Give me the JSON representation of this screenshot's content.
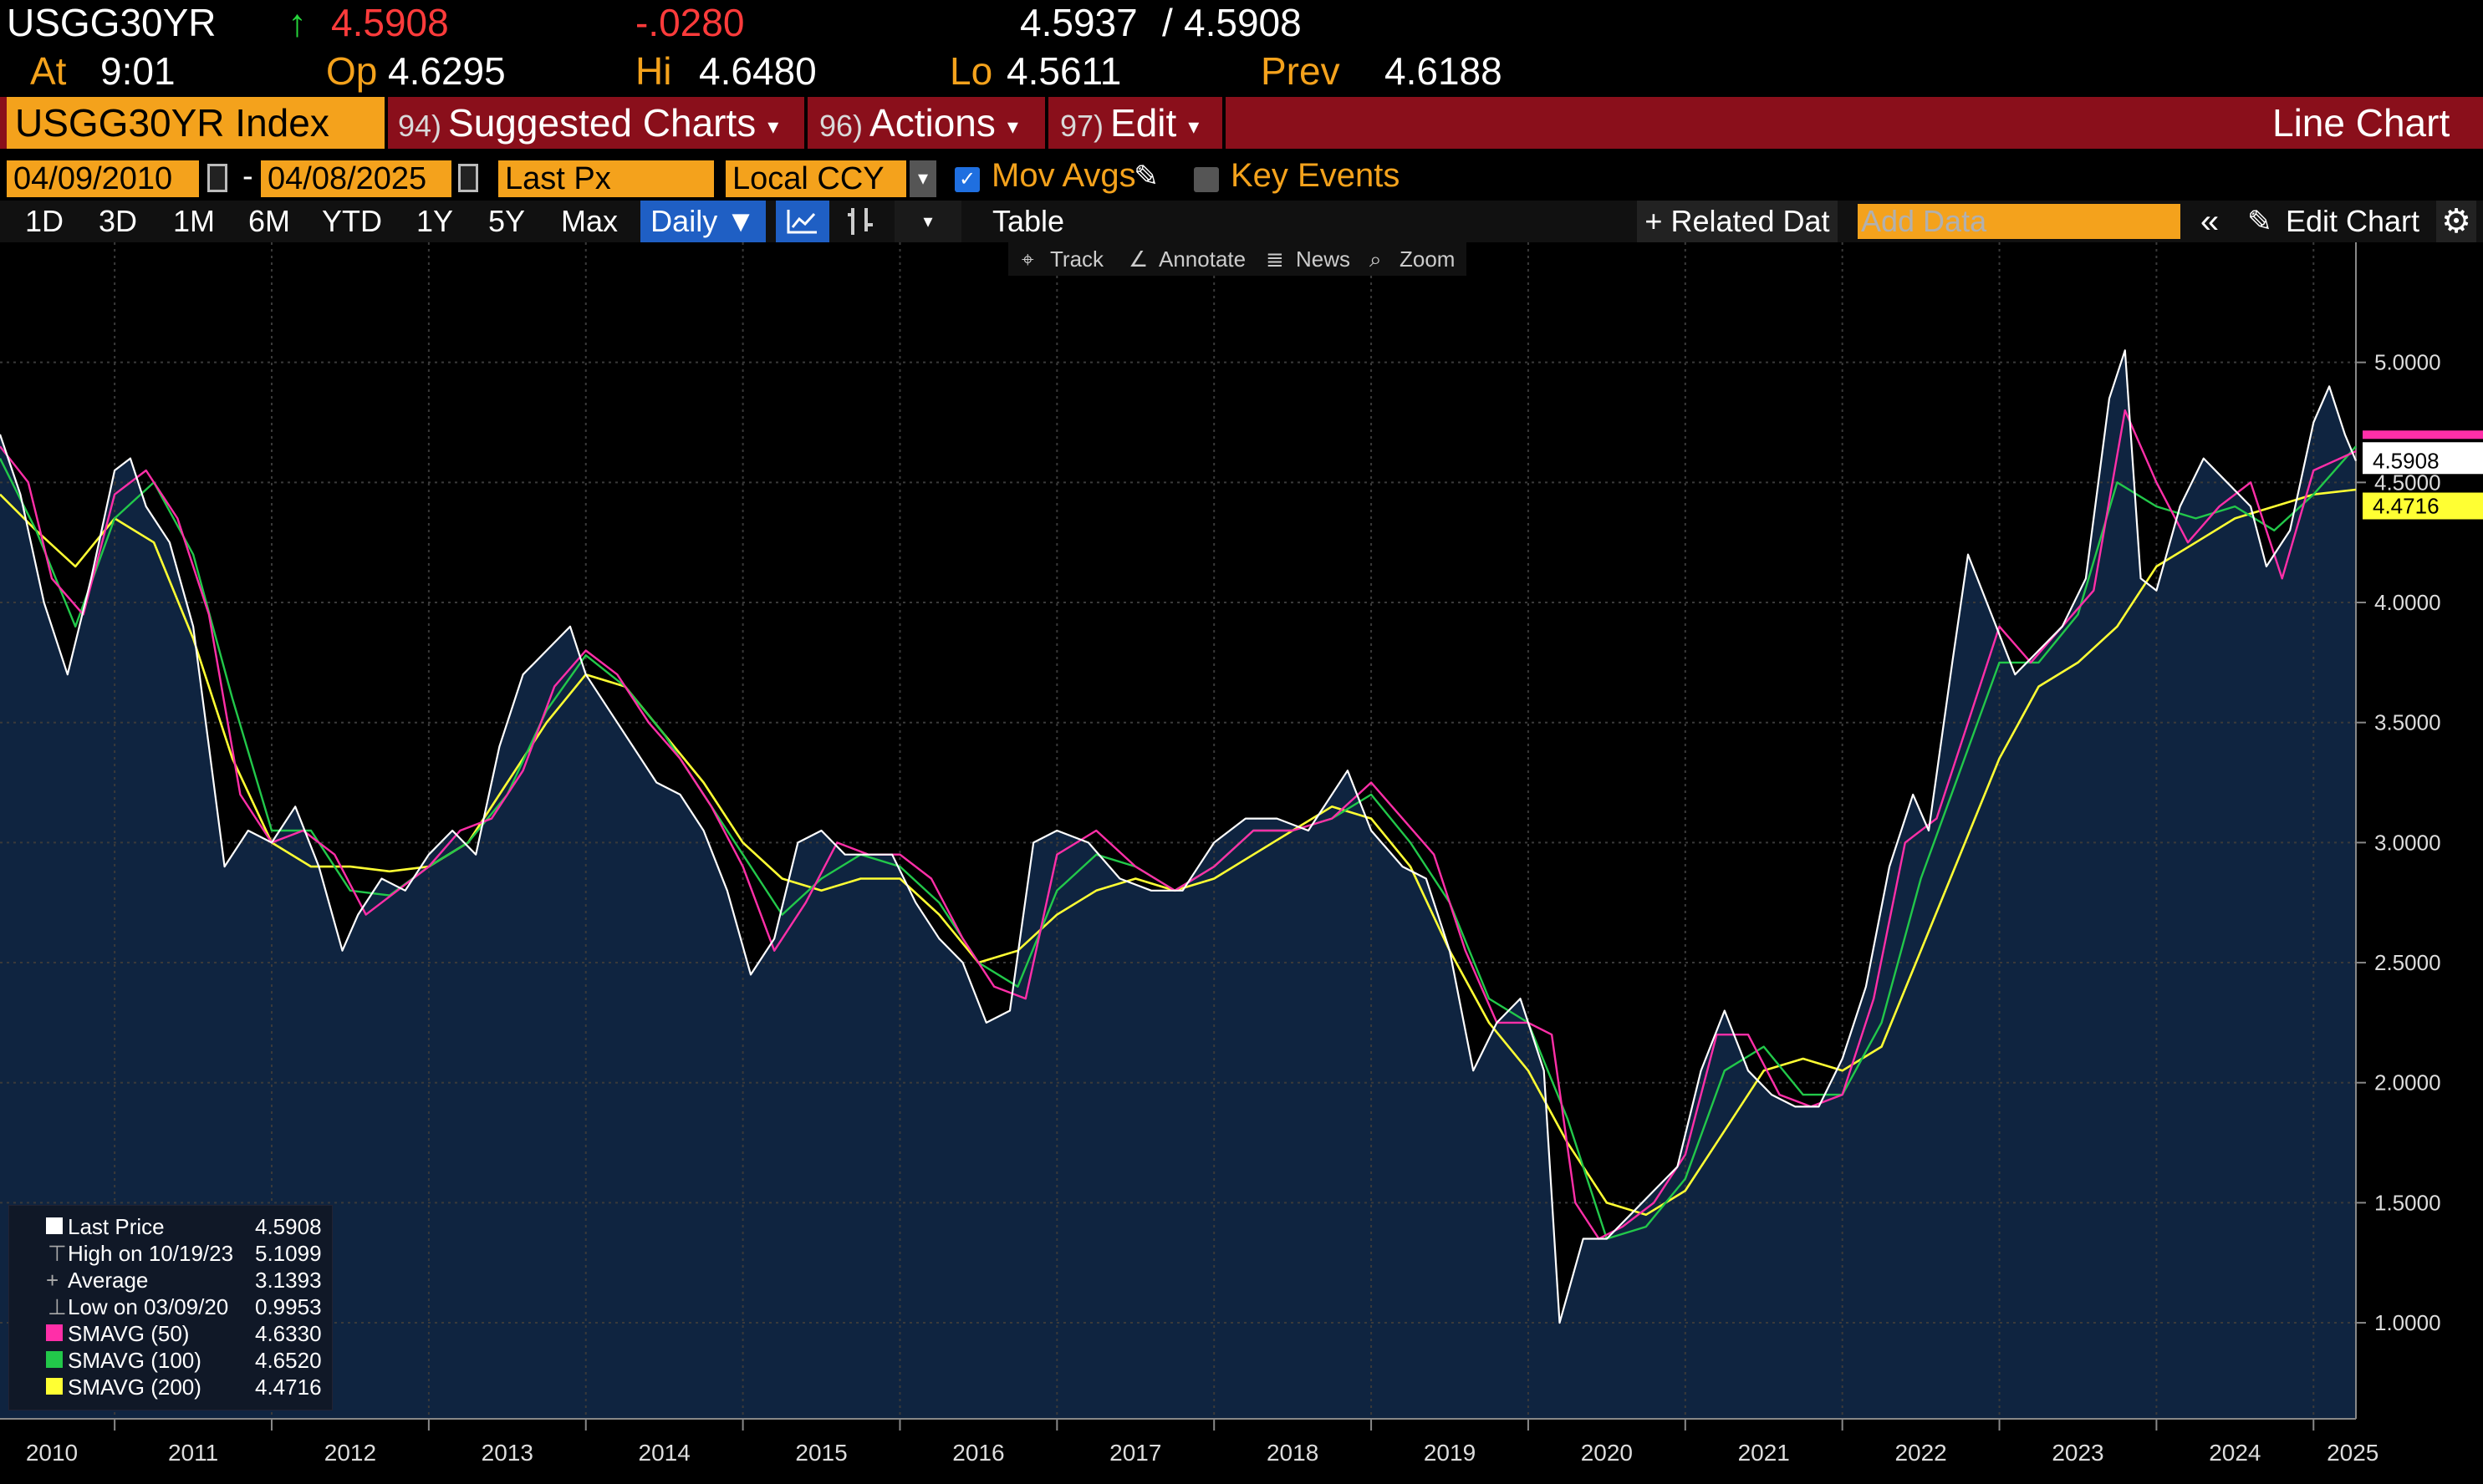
{
  "header": {
    "ticker": "USGG30YR",
    "up_arrow": "↑",
    "last": "4.5908",
    "change": "-.0280",
    "bid_ask": "4.5937",
    "bid_ask_sep": "/",
    "bid_ask2": "4.5908",
    "at_label": "At",
    "at_time": "9:01",
    "op_label": "Op",
    "op_value": "4.6295",
    "hi_label": "Hi",
    "hi_value": "4.6480",
    "lo_label": "Lo",
    "lo_value": "4.5611",
    "prev_label": "Prev",
    "prev_value": "4.6188"
  },
  "menu": {
    "security": "USGG30YR Index",
    "suggested_num": "94)",
    "suggested": "Suggested Charts",
    "actions_num": "96)",
    "actions": "Actions",
    "edit_num": "97)",
    "edit": "Edit",
    "caret": "▾",
    "chart_type": "Line Chart"
  },
  "controls": {
    "start_date": "04/09/2010",
    "dash": "-",
    "end_date": "04/08/2025",
    "field": "Last Px",
    "currency": "Local CCY",
    "dropdown_arrow": "▾",
    "mov_avgs": "Mov Avgs",
    "key_events": "Key Events",
    "pencil": "✎"
  },
  "ranges": {
    "items": [
      "1D",
      "3D",
      "1M",
      "6M",
      "YTD",
      "1Y",
      "5Y",
      "Max"
    ],
    "daily": "Daily ▼",
    "table": "Table",
    "related": "+ Related Dat",
    "add_data_placeholder": "Add Data",
    "collapse": "«",
    "edit_chart": "Edit Chart",
    "edit_icon": "✎",
    "gear": "⚙"
  },
  "toolbar": {
    "track": "Track",
    "annotate": "Annotate",
    "news": "News",
    "zoom": "Zoom"
  },
  "legend": {
    "last_label": "Last Price",
    "last_value": "4.5908",
    "high_label": "High on 10/19/23",
    "high_value": "5.1099",
    "avg_label": "Average",
    "avg_value": "3.1393",
    "low_label": "Low on 03/09/20",
    "low_value": "0.9953",
    "sma50_label": "SMAVG (50)",
    "sma50_value": "4.6330",
    "sma100_label": "SMAVG (100)",
    "sma100_value": "4.6520",
    "sma200_label": "SMAVG (200)",
    "sma200_value": "4.4716"
  },
  "colors": {
    "price": "#ffffff",
    "sma50": "#ff2fa8",
    "sma100": "#22c84a",
    "sma200": "#ffff33",
    "area": "#0f2440",
    "grid": "#3a3a3a"
  },
  "chart_data": {
    "type": "line",
    "title": "USGG30YR Index",
    "xlabel": "",
    "ylabel": "",
    "ylim": [
      0.6,
      5.5
    ],
    "yticks": [
      1.0,
      1.5,
      2.0,
      2.5,
      3.0,
      3.5,
      4.0,
      4.5,
      5.0
    ],
    "ytick_labels": [
      "1.0000",
      "1.5000",
      "2.0000",
      "2.5000",
      "3.0000",
      "3.5000",
      "4.0000",
      "4.5000",
      "5.0000"
    ],
    "xlim": [
      2010.27,
      2025.27
    ],
    "x_tick_labels": [
      "2010",
      "2011",
      "2012",
      "2013",
      "2014",
      "2015",
      "2016",
      "2017",
      "2018",
      "2019",
      "2020",
      "2021",
      "2022",
      "2023",
      "2024",
      "2025"
    ],
    "x_tick_positions": [
      2010.6,
      2011.5,
      2012.5,
      2013.5,
      2014.5,
      2015.5,
      2016.5,
      2017.5,
      2018.5,
      2019.5,
      2020.5,
      2021.5,
      2022.5,
      2023.5,
      2024.5,
      2025.25
    ],
    "last_price_label": "4.5908",
    "sma200_label": "4.4716",
    "series": [
      {
        "name": "Last Price",
        "x": [
          2010.27,
          2010.4,
          2010.55,
          2010.7,
          2010.85,
          2011.0,
          2011.1,
          2011.2,
          2011.35,
          2011.5,
          2011.6,
          2011.7,
          2011.85,
          2012.0,
          2012.15,
          2012.3,
          2012.45,
          2012.55,
          2012.7,
          2012.85,
          2013.0,
          2013.15,
          2013.3,
          2013.45,
          2013.6,
          2013.75,
          2013.9,
          2014.0,
          2014.15,
          2014.3,
          2014.45,
          2014.6,
          2014.75,
          2014.9,
          2015.05,
          2015.2,
          2015.35,
          2015.5,
          2015.65,
          2015.8,
          2015.95,
          2016.1,
          2016.25,
          2016.4,
          2016.55,
          2016.7,
          2016.85,
          2017.0,
          2017.2,
          2017.4,
          2017.6,
          2017.8,
          2018.0,
          2018.2,
          2018.4,
          2018.6,
          2018.85,
          2019.0,
          2019.2,
          2019.35,
          2019.5,
          2019.65,
          2019.8,
          2019.95,
          2020.1,
          2020.2,
          2020.35,
          2020.5,
          2020.65,
          2020.8,
          2020.95,
          2021.1,
          2021.25,
          2021.4,
          2021.55,
          2021.7,
          2021.85,
          2022.0,
          2022.15,
          2022.3,
          2022.45,
          2022.55,
          2022.7,
          2022.8,
          2022.95,
          2023.1,
          2023.25,
          2023.4,
          2023.55,
          2023.7,
          2023.8,
          2023.9,
          2024.0,
          2024.15,
          2024.3,
          2024.45,
          2024.6,
          2024.7,
          2024.85,
          2025.0,
          2025.1,
          2025.2,
          2025.27
        ],
        "values": [
          4.7,
          4.45,
          4.0,
          3.7,
          4.1,
          4.55,
          4.6,
          4.4,
          4.25,
          3.9,
          3.4,
          2.9,
          3.05,
          3.0,
          3.15,
          2.9,
          2.55,
          2.7,
          2.85,
          2.8,
          2.95,
          3.05,
          2.95,
          3.4,
          3.7,
          3.8,
          3.9,
          3.7,
          3.55,
          3.4,
          3.25,
          3.2,
          3.05,
          2.8,
          2.45,
          2.6,
          3.0,
          3.05,
          2.95,
          2.95,
          2.95,
          2.75,
          2.6,
          2.5,
          2.25,
          2.3,
          3.0,
          3.05,
          3.0,
          2.85,
          2.8,
          2.8,
          3.0,
          3.1,
          3.1,
          3.05,
          3.3,
          3.05,
          2.9,
          2.85,
          2.55,
          2.05,
          2.25,
          2.35,
          2.05,
          1.0,
          1.35,
          1.35,
          1.45,
          1.55,
          1.65,
          2.05,
          2.3,
          2.05,
          1.95,
          1.9,
          1.9,
          2.1,
          2.4,
          2.9,
          3.2,
          3.05,
          3.75,
          4.2,
          3.95,
          3.7,
          3.8,
          3.9,
          4.1,
          4.85,
          5.05,
          4.1,
          4.05,
          4.4,
          4.6,
          4.5,
          4.4,
          4.15,
          4.3,
          4.75,
          4.9,
          4.7,
          4.59
        ]
      },
      {
        "name": "SMAVG (50)",
        "x": [
          2010.27,
          2010.45,
          2010.6,
          2010.8,
          2011.0,
          2011.2,
          2011.4,
          2011.6,
          2011.8,
          2012.0,
          2012.2,
          2012.4,
          2012.6,
          2012.8,
          2013.0,
          2013.2,
          2013.4,
          2013.6,
          2013.8,
          2014.0,
          2014.2,
          2014.4,
          2014.6,
          2014.8,
          2015.0,
          2015.2,
          2015.4,
          2015.6,
          2015.8,
          2016.0,
          2016.2,
          2016.4,
          2016.6,
          2016.8,
          2017.0,
          2017.25,
          2017.5,
          2017.75,
          2018.0,
          2018.25,
          2018.5,
          2018.75,
          2019.0,
          2019.2,
          2019.4,
          2019.6,
          2019.8,
          2020.0,
          2020.15,
          2020.3,
          2020.45,
          2020.6,
          2020.8,
          2021.0,
          2021.2,
          2021.4,
          2021.6,
          2021.8,
          2022.0,
          2022.2,
          2022.4,
          2022.6,
          2022.8,
          2023.0,
          2023.2,
          2023.4,
          2023.6,
          2023.8,
          2024.0,
          2024.2,
          2024.4,
          2024.6,
          2024.8,
          2025.0,
          2025.27
        ],
        "values": [
          4.65,
          4.5,
          4.1,
          3.95,
          4.45,
          4.55,
          4.35,
          3.95,
          3.2,
          3.0,
          3.05,
          2.95,
          2.7,
          2.8,
          2.9,
          3.05,
          3.1,
          3.3,
          3.65,
          3.8,
          3.7,
          3.5,
          3.35,
          3.15,
          2.9,
          2.55,
          2.75,
          3.0,
          2.95,
          2.95,
          2.85,
          2.6,
          2.4,
          2.35,
          2.95,
          3.05,
          2.9,
          2.8,
          2.9,
          3.05,
          3.05,
          3.1,
          3.25,
          3.1,
          2.95,
          2.55,
          2.25,
          2.25,
          2.2,
          1.5,
          1.35,
          1.4,
          1.5,
          1.7,
          2.2,
          2.2,
          1.95,
          1.9,
          1.95,
          2.35,
          3.0,
          3.1,
          3.5,
          3.9,
          3.75,
          3.9,
          4.05,
          4.8,
          4.5,
          4.25,
          4.4,
          4.5,
          4.1,
          4.55,
          4.63
        ]
      },
      {
        "name": "SMAVG (100)",
        "x": [
          2010.27,
          2010.5,
          2010.75,
          2011.0,
          2011.25,
          2011.5,
          2011.75,
          2012.0,
          2012.25,
          2012.5,
          2012.75,
          2013.0,
          2013.25,
          2013.5,
          2013.75,
          2014.0,
          2014.25,
          2014.5,
          2014.75,
          2015.0,
          2015.25,
          2015.5,
          2015.75,
          2016.0,
          2016.25,
          2016.5,
          2016.75,
          2017.0,
          2017.25,
          2017.5,
          2017.75,
          2018.0,
          2018.25,
          2018.5,
          2018.75,
          2019.0,
          2019.25,
          2019.5,
          2019.75,
          2020.0,
          2020.25,
          2020.5,
          2020.75,
          2021.0,
          2021.25,
          2021.5,
          2021.75,
          2022.0,
          2022.25,
          2022.5,
          2022.75,
          2023.0,
          2023.25,
          2023.5,
          2023.75,
          2024.0,
          2024.25,
          2024.5,
          2024.75,
          2025.0,
          2025.27
        ],
        "values": [
          4.6,
          4.3,
          3.9,
          4.35,
          4.5,
          4.2,
          3.6,
          3.05,
          3.05,
          2.8,
          2.78,
          2.9,
          3.0,
          3.2,
          3.55,
          3.78,
          3.65,
          3.45,
          3.2,
          2.95,
          2.7,
          2.85,
          2.95,
          2.9,
          2.75,
          2.5,
          2.4,
          2.8,
          2.95,
          2.9,
          2.8,
          2.9,
          3.05,
          3.05,
          3.1,
          3.2,
          3.0,
          2.75,
          2.35,
          2.25,
          1.85,
          1.35,
          1.4,
          1.6,
          2.05,
          2.15,
          1.95,
          1.95,
          2.25,
          2.85,
          3.3,
          3.75,
          3.75,
          3.95,
          4.5,
          4.4,
          4.35,
          4.4,
          4.3,
          4.45,
          4.65
        ]
      },
      {
        "name": "SMAVG (200)",
        "x": [
          2010.27,
          2010.5,
          2010.75,
          2011.0,
          2011.25,
          2011.5,
          2011.75,
          2012.0,
          2012.25,
          2012.5,
          2012.75,
          2013.0,
          2013.25,
          2013.5,
          2013.75,
          2014.0,
          2014.25,
          2014.5,
          2014.75,
          2015.0,
          2015.25,
          2015.5,
          2015.75,
          2016.0,
          2016.25,
          2016.5,
          2016.75,
          2017.0,
          2017.25,
          2017.5,
          2017.75,
          2018.0,
          2018.25,
          2018.5,
          2018.75,
          2019.0,
          2019.25,
          2019.5,
          2019.75,
          2020.0,
          2020.25,
          2020.5,
          2020.75,
          2021.0,
          2021.25,
          2021.5,
          2021.75,
          2022.0,
          2022.25,
          2022.5,
          2022.75,
          2023.0,
          2023.25,
          2023.5,
          2023.75,
          2024.0,
          2024.25,
          2024.5,
          2024.75,
          2025.0,
          2025.27
        ],
        "values": [
          4.45,
          4.3,
          4.15,
          4.35,
          4.25,
          3.85,
          3.35,
          3.0,
          2.9,
          2.9,
          2.88,
          2.9,
          3.0,
          3.25,
          3.5,
          3.7,
          3.65,
          3.45,
          3.25,
          3.0,
          2.85,
          2.8,
          2.85,
          2.85,
          2.7,
          2.5,
          2.55,
          2.7,
          2.8,
          2.85,
          2.8,
          2.85,
          2.95,
          3.05,
          3.15,
          3.1,
          2.9,
          2.55,
          2.25,
          2.05,
          1.75,
          1.5,
          1.45,
          1.55,
          1.8,
          2.05,
          2.1,
          2.05,
          2.15,
          2.55,
          2.95,
          3.35,
          3.65,
          3.75,
          3.9,
          4.15,
          4.25,
          4.35,
          4.4,
          4.45,
          4.47
        ]
      }
    ]
  }
}
